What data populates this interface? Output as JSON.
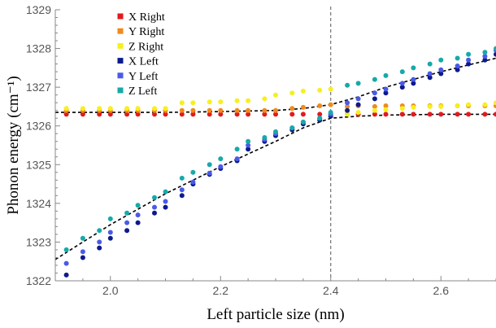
{
  "chart_data": {
    "type": "scatter",
    "xlabel": "Left particle size (nm)",
    "ylabel": "Phonon energy (cm⁻¹)",
    "xlim": [
      1.9,
      2.7
    ],
    "ylim": [
      1322,
      1329
    ],
    "xticks": [
      {
        "value": 2.0,
        "label": "2.0"
      },
      {
        "value": 2.2,
        "label": "2.2"
      },
      {
        "value": 2.4,
        "label": "2.4"
      },
      {
        "value": 2.6,
        "label": "2.6"
      }
    ],
    "yticks": [
      {
        "value": 1322,
        "label": "1322"
      },
      {
        "value": 1323,
        "label": "1323"
      },
      {
        "value": 1324,
        "label": "1324"
      },
      {
        "value": 1325,
        "label": "1325"
      },
      {
        "value": 1326,
        "label": "1326"
      },
      {
        "value": 1327,
        "label": "1327"
      },
      {
        "value": 1328,
        "label": "1328"
      },
      {
        "value": 1329,
        "label": "1329"
      }
    ],
    "vline_x": 2.4,
    "legend_position": "top-left",
    "x_values": [
      1.92,
      1.95,
      1.98,
      2.0,
      2.03,
      2.05,
      2.08,
      2.1,
      2.13,
      2.15,
      2.18,
      2.2,
      2.23,
      2.25,
      2.28,
      2.3,
      2.33,
      2.35,
      2.38,
      2.4,
      2.43,
      2.45,
      2.48,
      2.5,
      2.53,
      2.55,
      2.58,
      2.6,
      2.63,
      2.65,
      2.68,
      2.7
    ],
    "series": [
      {
        "name": "X Right",
        "color": "#e31a1c",
        "values": [
          1326.3,
          1326.3,
          1326.3,
          1326.3,
          1326.3,
          1326.3,
          1326.3,
          1326.3,
          1326.3,
          1326.3,
          1326.3,
          1326.3,
          1326.3,
          1326.3,
          1326.3,
          1326.3,
          1326.3,
          1326.3,
          1326.3,
          1326.3,
          1326.3,
          1326.3,
          1326.3,
          1326.3,
          1326.3,
          1326.3,
          1326.3,
          1326.3,
          1326.3,
          1326.3,
          1326.3,
          1326.3
        ]
      },
      {
        "name": "Y Right",
        "color": "#f08a1c",
        "values": [
          1326.4,
          1326.4,
          1326.4,
          1326.4,
          1326.4,
          1326.4,
          1326.4,
          1326.4,
          1326.4,
          1326.4,
          1326.4,
          1326.4,
          1326.4,
          1326.4,
          1326.4,
          1326.4,
          1326.45,
          1326.48,
          1326.52,
          1326.55,
          1326.5,
          1326.52,
          1326.5,
          1326.52,
          1326.52,
          1326.52,
          1326.52,
          1326.52,
          1326.52,
          1326.52,
          1326.52,
          1326.52
        ]
      },
      {
        "name": "Z Right",
        "color": "#f5f01e",
        "values": [
          1326.45,
          1326.45,
          1326.45,
          1326.45,
          1326.45,
          1326.45,
          1326.45,
          1326.45,
          1326.6,
          1326.6,
          1326.62,
          1326.62,
          1326.65,
          1326.65,
          1326.7,
          1326.8,
          1326.85,
          1326.9,
          1326.92,
          1326.95,
          1326.3,
          1326.35,
          1326.4,
          1326.42,
          1326.45,
          1326.48,
          1326.5,
          1326.5,
          1326.52,
          1326.55,
          1326.55,
          1326.6
        ]
      },
      {
        "name": "X Left",
        "color": "#0d1a8c",
        "values": [
          1322.15,
          1322.6,
          1322.85,
          1323.1,
          1323.3,
          1323.5,
          1323.75,
          1323.9,
          1324.2,
          1324.5,
          1324.75,
          1324.9,
          1325.1,
          1325.4,
          1325.6,
          1325.75,
          1325.9,
          1326.05,
          1326.15,
          1326.25,
          1326.4,
          1326.55,
          1326.7,
          1326.85,
          1327.0,
          1327.1,
          1327.25,
          1327.35,
          1327.45,
          1327.6,
          1327.7,
          1327.85
        ]
      },
      {
        "name": "Y Left",
        "color": "#4a5ae8",
        "values": [
          1322.45,
          1322.75,
          1323.0,
          1323.25,
          1323.5,
          1323.7,
          1323.9,
          1324.05,
          1324.35,
          1324.55,
          1324.78,
          1324.95,
          1325.15,
          1325.5,
          1325.65,
          1325.8,
          1325.95,
          1326.1,
          1326.2,
          1326.3,
          1326.6,
          1326.7,
          1326.85,
          1326.95,
          1327.1,
          1327.2,
          1327.35,
          1327.45,
          1327.55,
          1327.7,
          1327.8,
          1327.95
        ]
      },
      {
        "name": "Z Left",
        "color": "#17a9a9",
        "values": [
          1322.8,
          1323.1,
          1323.3,
          1323.6,
          1323.75,
          1323.95,
          1324.15,
          1324.3,
          1324.65,
          1324.8,
          1325.0,
          1325.15,
          1325.4,
          1325.6,
          1325.7,
          1325.85,
          1325.95,
          1326.1,
          1326.2,
          1326.35,
          1327.05,
          1327.1,
          1327.2,
          1327.3,
          1327.4,
          1327.5,
          1327.6,
          1327.7,
          1327.75,
          1327.85,
          1327.9,
          1328.0
        ]
      }
    ],
    "fit_curves": [
      {
        "kind": "lower",
        "x": [
          1.9,
          2.0,
          2.1,
          2.2,
          2.3,
          2.35,
          2.4,
          2.45,
          2.5,
          2.6,
          2.7
        ],
        "y": [
          1322.55,
          1323.45,
          1324.25,
          1324.95,
          1325.6,
          1325.95,
          1326.2,
          1326.25,
          1326.28,
          1326.3,
          1326.3
        ]
      },
      {
        "kind": "upper",
        "x": [
          1.9,
          2.0,
          2.1,
          2.2,
          2.3,
          2.35,
          2.4,
          2.45,
          2.5,
          2.6,
          2.7
        ],
        "y": [
          1326.35,
          1326.35,
          1326.35,
          1326.37,
          1326.4,
          1326.45,
          1326.55,
          1326.75,
          1327.0,
          1327.4,
          1327.75
        ]
      }
    ]
  }
}
